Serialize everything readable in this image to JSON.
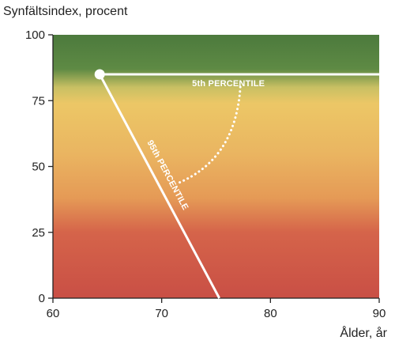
{
  "chart_data": {
    "type": "line",
    "title": "",
    "ylabel": "Synfältsindex, procent",
    "xlabel": "Ålder, år",
    "xlim": [
      60,
      90
    ],
    "ylim": [
      0,
      100
    ],
    "x_ticks": [
      60,
      70,
      80,
      90
    ],
    "y_ticks": [
      0,
      25,
      50,
      75,
      100
    ],
    "grid": false,
    "background": "vertical gradient: green (top) through yellow and orange to red (bottom)",
    "colors": {
      "green": "#4f7a3c",
      "yellow": "#ecc665",
      "orange": "#e59a56",
      "red": "#c54e43",
      "lines": "#ffffff"
    },
    "start_point": {
      "x": 64.3,
      "y": 85
    },
    "series": [
      {
        "name": "5th PERCENTILE",
        "x": [
          64.3,
          90
        ],
        "y": [
          85,
          85
        ]
      },
      {
        "name": "95th PERCENTILE",
        "x": [
          64.3,
          75.3
        ],
        "y": [
          85,
          0
        ]
      }
    ],
    "annotations": [
      {
        "type": "dotted-arc",
        "between": [
          "5th PERCENTILE",
          "95th PERCENTILE"
        ]
      }
    ]
  }
}
